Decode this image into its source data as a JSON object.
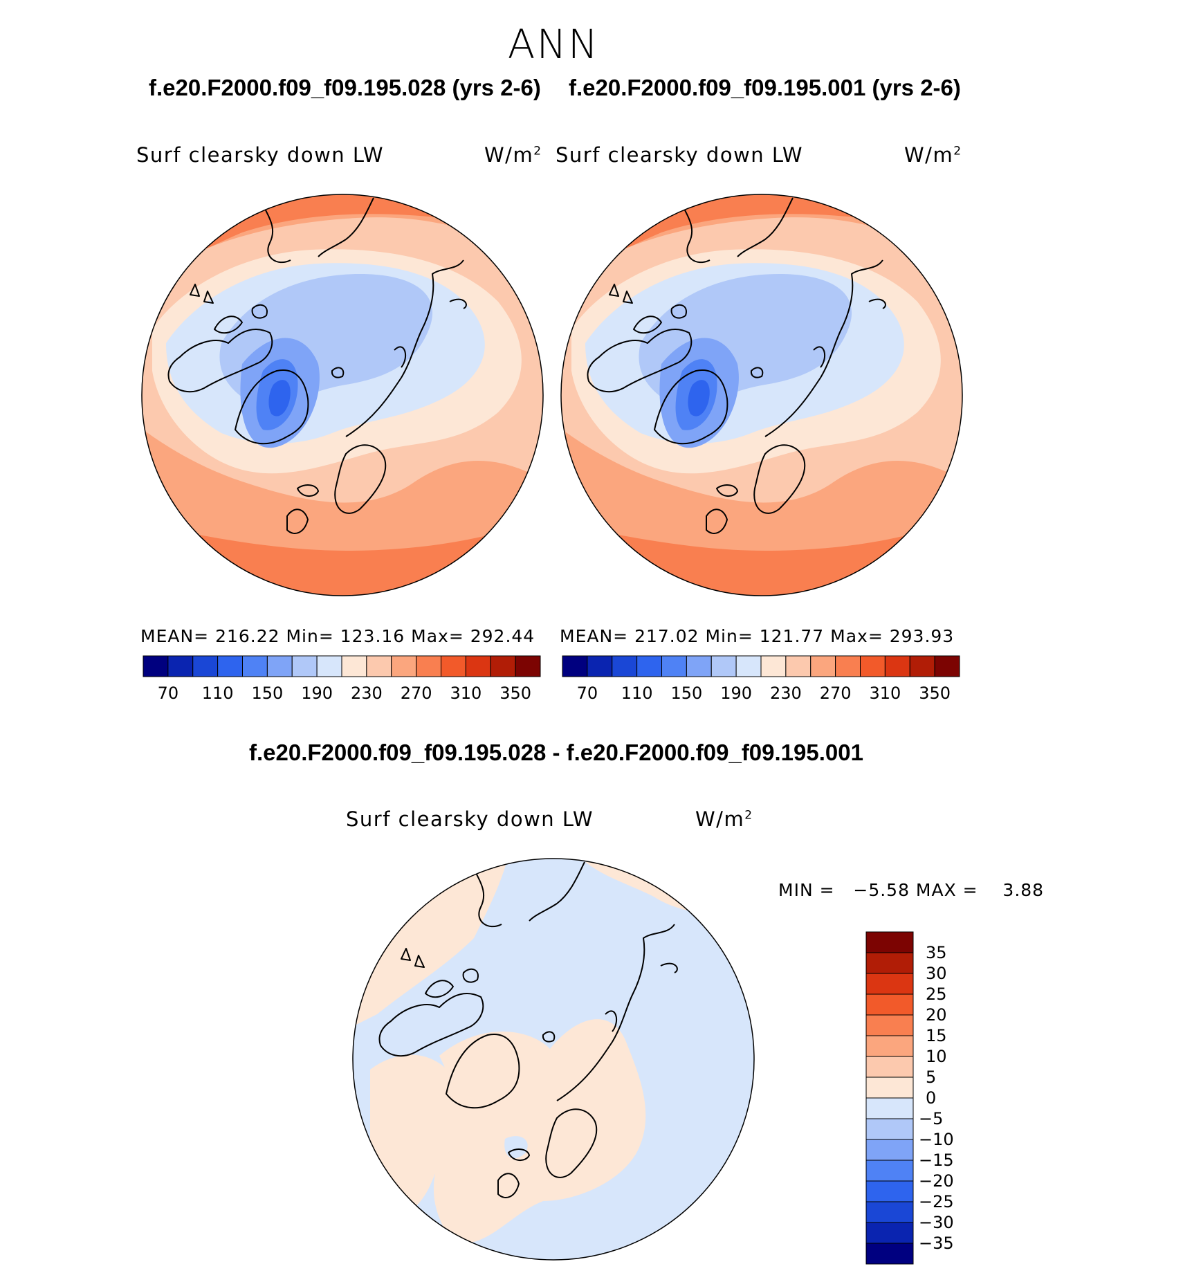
{
  "main_title": "ANN",
  "panels": [
    {
      "case_title": "f.e20.F2000.f09_f09.195.028 (yrs 2-6)",
      "variable": "Surf clearsky down LW",
      "units_base": "W/m",
      "units_exp": "2",
      "stats": "MEAN= 216.22  Min= 123.16  Max= 292.44",
      "colorbar_ticks": [
        "70",
        "110",
        "150",
        "190",
        "230",
        "270",
        "310",
        "350"
      ]
    },
    {
      "case_title": "f.e20.F2000.f09_f09.195.001 (yrs 2-6)",
      "variable": "Surf clearsky down LW",
      "units_base": "W/m",
      "units_exp": "2",
      "stats": "MEAN= 217.02  Min= 121.77  Max= 293.93",
      "colorbar_ticks": [
        "70",
        "110",
        "150",
        "190",
        "230",
        "270",
        "310",
        "350"
      ]
    }
  ],
  "diff": {
    "title": "f.e20.F2000.f09_f09.195.028 - f.e20.F2000.f09_f09.195.001",
    "variable": "Surf clearsky down LW",
    "units_base": "W/m",
    "units_exp": "2",
    "minmax": "MIN =   −5.58 MAX =    3.88",
    "colorbar_ticks": [
      "35",
      "30",
      "25",
      "20",
      "15",
      "10",
      "5",
      "0",
      "−5",
      "−10",
      "−15",
      "−20",
      "−25",
      "−30",
      "−35"
    ]
  },
  "colors": {
    "abs_scale": [
      "#00007f",
      "#0a24b0",
      "#1a47d6",
      "#2e64ee",
      "#4f82f5",
      "#7fa4f7",
      "#b0c8f8",
      "#d7e6fb",
      "#fde7d6",
      "#fcc9ae",
      "#fba67e",
      "#f97f50",
      "#f25a2a",
      "#db3612",
      "#b11d06",
      "#7c0402"
    ],
    "diff_scale": [
      "#000080",
      "#0a24b0",
      "#1a47d6",
      "#2e64ee",
      "#4f82f5",
      "#7fa4f7",
      "#b0c8f8",
      "#d7e6fb",
      "#fde7d6",
      "#fcc9ae",
      "#fba67e",
      "#f97f50",
      "#f25a2a",
      "#db3612",
      "#b11d06",
      "#7c0402"
    ],
    "coast": "#000000"
  }
}
